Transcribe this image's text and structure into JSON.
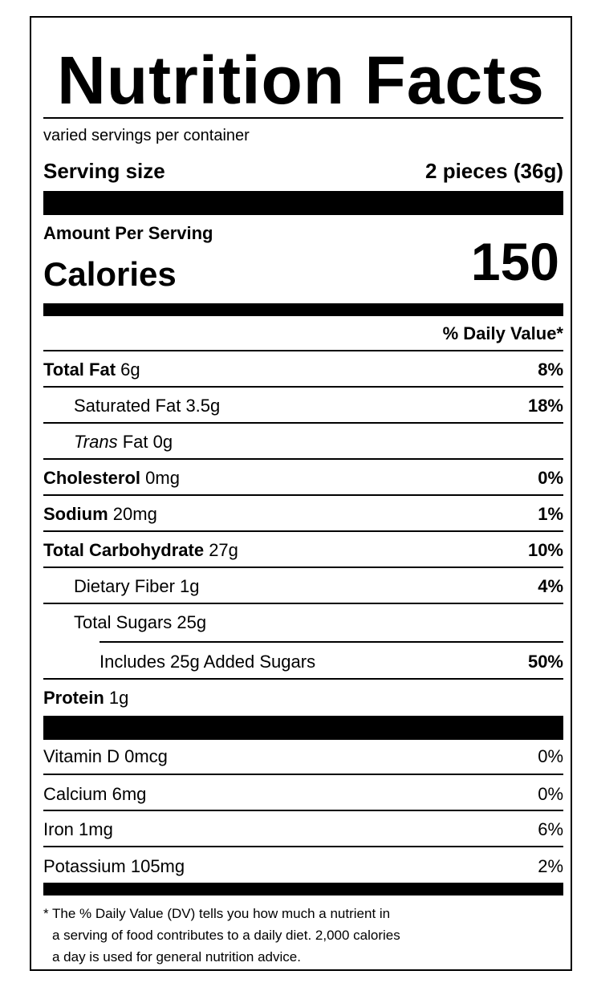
{
  "label": {
    "title": "Nutrition Facts",
    "servings_per_container": "varied servings per container",
    "serving_size_label": "Serving size",
    "serving_size_value": "2 pieces (36g)",
    "amount_per_serving": "Amount Per Serving",
    "calories_label": "Calories",
    "calories_value": "150",
    "daily_value_header": "% Daily Value*",
    "nutrients": [
      {
        "name": "Total Fat",
        "amount": "6g",
        "dv": "8%"
      },
      {
        "name": "Saturated Fat",
        "amount": "3.5g",
        "dv": "18%"
      },
      {
        "name_italic": "Trans",
        "name": "Fat",
        "amount": "0g",
        "dv": ""
      },
      {
        "name": "Cholesterol",
        "amount": "0mg",
        "dv": "0%"
      },
      {
        "name": "Sodium",
        "amount": "20mg",
        "dv": "1%"
      },
      {
        "name": "Total Carbohydrate",
        "amount": "27g",
        "dv": "10%"
      },
      {
        "name": "Dietary Fiber",
        "amount": "1g",
        "dv": "4%"
      },
      {
        "name": "Total Sugars",
        "amount": "25g",
        "dv": ""
      },
      {
        "name": "Includes 25g Added Sugars",
        "amount": "",
        "dv": "50%"
      },
      {
        "name": "Protein",
        "amount": "1g",
        "dv": ""
      }
    ],
    "vitamins": [
      {
        "name": "Vitamin D",
        "amount": "0mcg",
        "dv": "0%"
      },
      {
        "name": "Calcium",
        "amount": "6mg",
        "dv": "0%"
      },
      {
        "name": "Iron",
        "amount": "1mg",
        "dv": "6%"
      },
      {
        "name": "Potassium",
        "amount": "105mg",
        "dv": "2%"
      }
    ],
    "footnote_lines": [
      "* The % Daily Value (DV) tells you how much a nutrient in",
      "a serving of food contributes to a daily diet. 2,000 calories",
      "a day is used for general nutrition advice."
    ]
  }
}
